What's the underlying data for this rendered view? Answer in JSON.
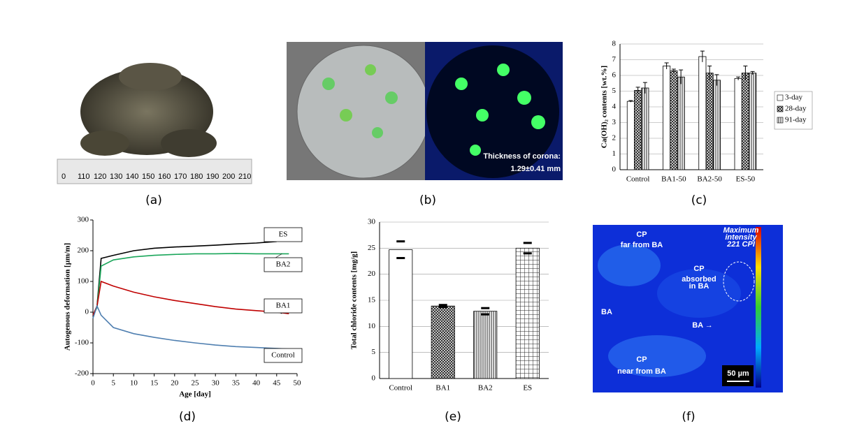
{
  "panel_labels": [
    "(a)",
    "(b)",
    "(c)",
    "(d)",
    "(e)",
    "(f)"
  ],
  "photo_a": {
    "ruler_labels": [
      "0",
      "110",
      "120",
      "130",
      "140",
      "150",
      "160",
      "170",
      "180",
      "190",
      "200",
      "210"
    ]
  },
  "photo_b": {
    "caption_lines": [
      "Thickness of corona:",
      "1.29±0.41 mm"
    ]
  },
  "photo_f": {
    "labels": [
      "CP",
      "far from BA",
      "Maximum",
      "intensity",
      "221 CPI",
      "CP",
      "absorbed",
      "in BA",
      "BA",
      "BA →",
      "CP",
      "near from BA"
    ],
    "scale_bar": "50 µm"
  },
  "chart_data": [
    {
      "type": "bar",
      "y_label": "Ca(OH)₂ contents [wt.%]",
      "categories": [
        "Control",
        "BA1-50",
        "BA2-50",
        "ES-50"
      ],
      "series": [
        {
          "name": "3-day",
          "values": [
            4.35,
            6.6,
            7.2,
            5.8
          ],
          "errors": [
            0.05,
            0.2,
            0.35,
            0.1
          ]
        },
        {
          "name": "28-day",
          "values": [
            5.05,
            6.3,
            6.15,
            6.15
          ],
          "errors": [
            0.2,
            0.1,
            0.45,
            0.45
          ]
        },
        {
          "name": "91-day",
          "values": [
            5.2,
            5.9,
            5.7,
            6.15
          ],
          "errors": [
            0.35,
            0.45,
            0.35,
            0.1
          ]
        }
      ],
      "ylim": [
        0,
        8
      ],
      "yticks": [
        0,
        1,
        2,
        3,
        4,
        5,
        6,
        7,
        8
      ],
      "grid": true
    },
    {
      "type": "line",
      "x_label": "Age [day]",
      "y_label": "Autogenous deformation [µm/m]",
      "x": [
        0,
        1,
        2,
        5,
        10,
        15,
        20,
        25,
        30,
        35,
        40,
        45,
        48
      ],
      "series": [
        {
          "name": "ES",
          "color": "#000000",
          "values": [
            -10,
            20,
            175,
            185,
            200,
            208,
            212,
            215,
            218,
            222,
            225,
            230,
            null
          ]
        },
        {
          "name": "BA2",
          "color": "#1aa65a",
          "values": [
            -10,
            15,
            150,
            170,
            180,
            185,
            188,
            190,
            190,
            191,
            190,
            190,
            190
          ]
        },
        {
          "name": "BA1",
          "color": "#c00000",
          "values": [
            -10,
            20,
            100,
            85,
            65,
            50,
            38,
            28,
            18,
            10,
            5,
            0,
            -5
          ]
        },
        {
          "name": "Control",
          "color": "#4f7fb0",
          "values": [
            -20,
            20,
            -10,
            -50,
            -70,
            -82,
            -92,
            -100,
            -107,
            -112,
            -115,
            -118,
            -120
          ]
        }
      ],
      "xlim": [
        0,
        50
      ],
      "xticks": [
        0,
        5,
        10,
        15,
        20,
        25,
        30,
        35,
        40,
        45,
        50
      ],
      "ylim": [
        -200,
        300
      ],
      "yticks": [
        -200,
        -100,
        0,
        100,
        200,
        300
      ]
    },
    {
      "type": "bar",
      "y_label": "Total chloride contents [mg/g]",
      "categories": [
        "Control",
        "BA1",
        "BA2",
        "ES"
      ],
      "values": [
        24.7,
        13.9,
        12.9,
        25
      ],
      "errors": [
        1.6,
        0.2,
        0.6,
        1.0
      ],
      "ylim": [
        0,
        30
      ],
      "yticks": [
        0,
        5,
        10,
        15,
        20,
        25,
        30
      ],
      "grid": true
    }
  ]
}
